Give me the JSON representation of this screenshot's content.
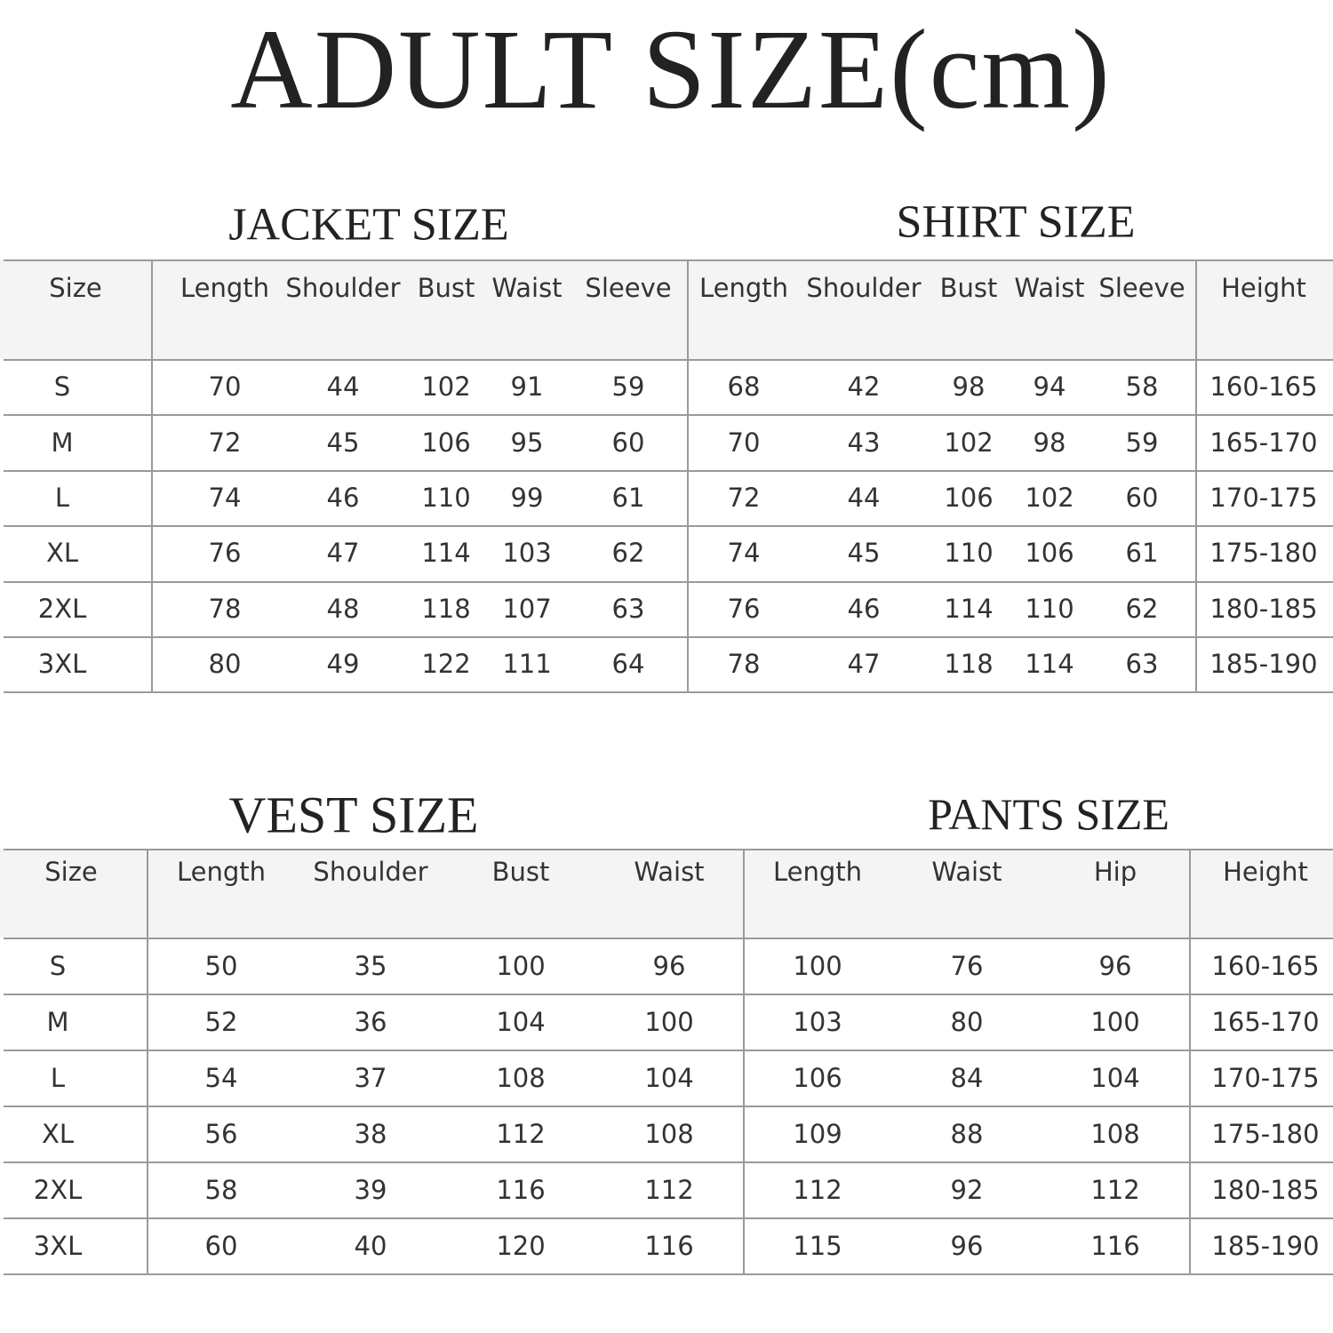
{
  "title": "ADULT SIZE(cm)",
  "tables": [
    {
      "headings": [
        "JACKET SIZE",
        "SHIRT SIZE"
      ],
      "columns": [
        "Size",
        "Length",
        "Shoulder",
        "Bust",
        "Waist",
        "Sleeve",
        "Length",
        "Shoulder",
        "Bust",
        "Waist",
        "Sleeve",
        "Height"
      ],
      "rows": [
        [
          "S",
          70,
          44,
          102,
          91,
          59,
          68,
          42,
          98,
          94,
          58,
          "160-165"
        ],
        [
          "M",
          72,
          45,
          106,
          95,
          60,
          70,
          43,
          102,
          98,
          59,
          "165-170"
        ],
        [
          "L",
          74,
          46,
          110,
          99,
          61,
          72,
          44,
          106,
          102,
          60,
          "170-175"
        ],
        [
          "XL",
          76,
          47,
          114,
          103,
          62,
          74,
          45,
          110,
          106,
          61,
          "175-180"
        ],
        [
          "2XL",
          78,
          48,
          118,
          107,
          63,
          76,
          46,
          114,
          110,
          62,
          "180-185"
        ],
        [
          "3XL",
          80,
          49,
          122,
          111,
          64,
          78,
          47,
          118,
          114,
          63,
          "185-190"
        ]
      ]
    },
    {
      "headings": [
        "VEST SIZE",
        "PANTS SIZE"
      ],
      "columns": [
        "Size",
        "Length",
        "Shoulder",
        "Bust",
        "Waist",
        "Length",
        "Waist",
        "Hip",
        "Height"
      ],
      "rows": [
        [
          "S",
          50,
          35,
          100,
          96,
          100,
          76,
          96,
          "160-165"
        ],
        [
          "M",
          52,
          36,
          104,
          100,
          103,
          80,
          100,
          "165-170"
        ],
        [
          "L",
          54,
          37,
          108,
          104,
          106,
          84,
          104,
          "170-175"
        ],
        [
          "XL",
          56,
          38,
          112,
          108,
          109,
          88,
          108,
          "175-180"
        ],
        [
          "2XL",
          58,
          39,
          116,
          112,
          112,
          92,
          112,
          "180-185"
        ],
        [
          "3XL",
          60,
          40,
          120,
          116,
          115,
          96,
          116,
          "185-190"
        ]
      ]
    }
  ]
}
